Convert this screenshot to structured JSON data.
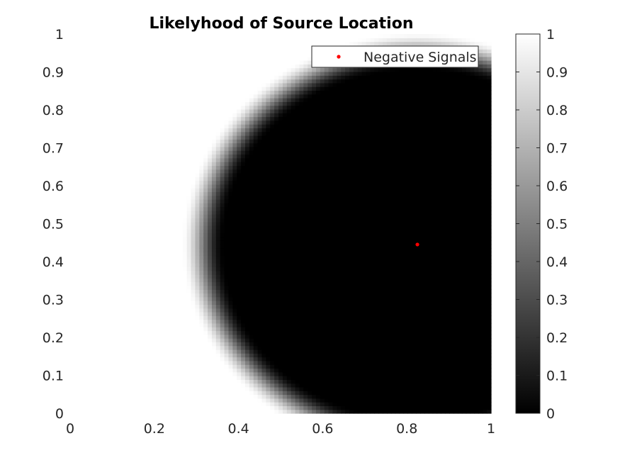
{
  "chart_data": {
    "type": "heatmap",
    "title": "Likelyhood of Source Location",
    "xlabel": "",
    "ylabel": "",
    "xlim": [
      0,
      1
    ],
    "ylim": [
      0,
      1
    ],
    "x_ticks": [
      "0",
      "0.2",
      "0.4",
      "0.6",
      "0.8",
      "1"
    ],
    "y_ticks": [
      "0",
      "0.1",
      "0.2",
      "0.3",
      "0.4",
      "0.5",
      "0.6",
      "0.7",
      "0.8",
      "0.9",
      "1"
    ],
    "colormap": "gray",
    "clim": [
      0,
      1
    ],
    "colorbar_ticks": [
      "0",
      "0.1",
      "0.2",
      "0.3",
      "0.4",
      "0.5",
      "0.6",
      "0.7",
      "0.8",
      "0.9",
      "1"
    ],
    "likelihood_field": {
      "center": [
        0.825,
        0.445
      ],
      "zero_radius": 0.46,
      "one_radius": 0.56
    },
    "series": [
      {
        "name": "Negative Signals",
        "marker": "dot",
        "color": "#ff0000",
        "points": [
          [
            0.825,
            0.445
          ]
        ]
      }
    ],
    "legend": {
      "placement": "top-right",
      "entries": [
        "Negative Signals"
      ]
    },
    "grid": false
  }
}
